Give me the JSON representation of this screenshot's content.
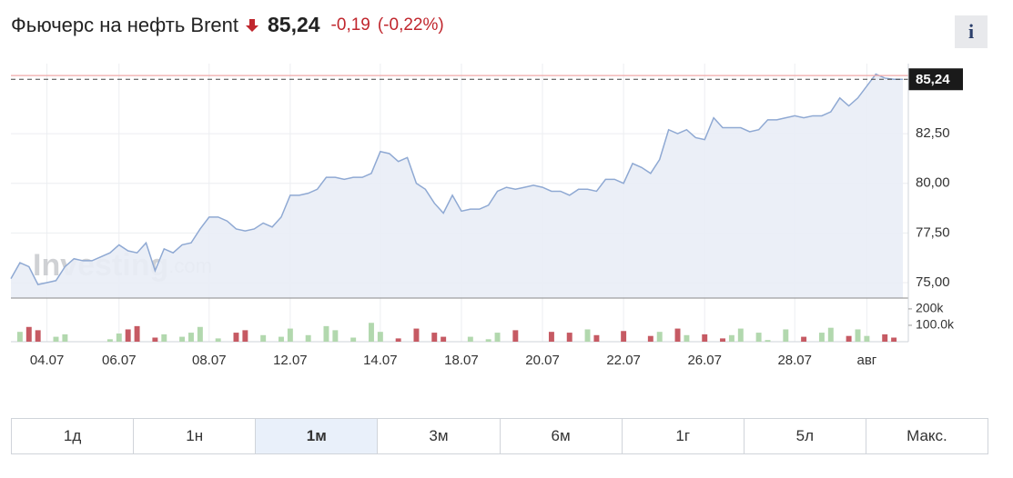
{
  "header": {
    "title": "Фьючерс на нефть Brent",
    "price": "85,24",
    "change": "-0,19",
    "change_pct": "(-0,22%)",
    "info": "i"
  },
  "chart_data": {
    "type": "area",
    "watermark": {
      "brand": "Investing",
      "suffix": ".com"
    },
    "color": "#8fa9d3",
    "fill_color": "#e9edf6",
    "categories": [
      null,
      null,
      null,
      null,
      "04.07",
      null,
      null,
      null,
      null,
      null,
      null,
      null,
      "06.07",
      null,
      null,
      null,
      null,
      null,
      null,
      null,
      null,
      null,
      "08.07",
      null,
      null,
      null,
      null,
      null,
      null,
      null,
      null,
      "12.07",
      null,
      null,
      null,
      null,
      null,
      null,
      null,
      null,
      null,
      "14.07",
      null,
      null,
      null,
      null,
      null,
      null,
      null,
      null,
      "18.07",
      null,
      null,
      null,
      null,
      null,
      null,
      null,
      null,
      "20.07",
      null,
      null,
      null,
      null,
      null,
      null,
      null,
      null,
      "22.07",
      null,
      null,
      null,
      null,
      null,
      null,
      null,
      null,
      "26.07",
      null,
      null,
      null,
      null,
      null,
      null,
      null,
      null,
      null,
      "28.07",
      null,
      null,
      null,
      null,
      null,
      null,
      null,
      "авг",
      null,
      null,
      null,
      null
    ],
    "values": [
      75.2,
      76.0,
      75.8,
      74.9,
      75.0,
      75.1,
      75.8,
      76.2,
      76.1,
      76.1,
      76.3,
      76.5,
      76.9,
      76.6,
      76.5,
      77.0,
      75.6,
      76.7,
      76.5,
      76.9,
      77.0,
      77.7,
      78.3,
      78.3,
      78.1,
      77.7,
      77.6,
      77.7,
      78.0,
      77.8,
      78.3,
      79.4,
      79.4,
      79.5,
      79.7,
      80.3,
      80.3,
      80.2,
      80.3,
      80.3,
      80.5,
      81.6,
      81.5,
      81.1,
      81.3,
      80.0,
      79.7,
      79.0,
      78.5,
      79.4,
      78.6,
      78.7,
      78.7,
      78.9,
      79.6,
      79.8,
      79.7,
      79.8,
      79.9,
      79.8,
      79.6,
      79.6,
      79.4,
      79.7,
      79.7,
      79.6,
      80.2,
      80.2,
      80.0,
      81.0,
      80.8,
      80.5,
      81.2,
      82.7,
      82.5,
      82.7,
      82.3,
      82.2,
      83.3,
      82.8,
      82.8,
      82.8,
      82.6,
      82.7,
      83.2,
      83.2,
      83.3,
      83.4,
      83.3,
      83.4,
      83.4,
      83.6,
      84.3,
      83.9,
      84.3,
      84.9,
      85.5,
      85.3,
      85.24,
      85.24
    ],
    "ylim": [
      74.22,
      86.03
    ],
    "yticks": [
      {
        "value": 75,
        "label": "75,00"
      },
      {
        "value": 77.5,
        "label": "77,50"
      },
      {
        "value": 80,
        "label": "80,00"
      },
      {
        "value": 82.5,
        "label": "82,50"
      }
    ],
    "last": {
      "value": 85.24,
      "label": "85,24"
    },
    "reference_line": 85.43,
    "volume": {
      "up_color": "#b2d8ae",
      "down_color": "#c65a63",
      "values": [
        0,
        60000,
        90000,
        70000,
        0,
        30000,
        45000,
        0,
        0,
        0,
        0,
        15000,
        50000,
        75000,
        95000,
        0,
        25000,
        45000,
        0,
        30000,
        55000,
        90000,
        0,
        20000,
        0,
        55000,
        70000,
        0,
        40000,
        0,
        30000,
        80000,
        0,
        40000,
        0,
        95000,
        70000,
        0,
        25000,
        0,
        115000,
        60000,
        0,
        20000,
        0,
        80000,
        0,
        55000,
        30000,
        0,
        0,
        30000,
        0,
        15000,
        55000,
        0,
        70000,
        0,
        0,
        0,
        60000,
        0,
        55000,
        0,
        75000,
        40000,
        0,
        0,
        65000,
        0,
        0,
        35000,
        60000,
        0,
        80000,
        40000,
        0,
        45000,
        0,
        20000,
        40000,
        80000,
        0,
        55000,
        10000,
        0,
        75000,
        0,
        30000,
        0,
        55000,
        85000,
        0,
        35000,
        75000,
        35000,
        0,
        45000,
        25000,
        0
      ],
      "ylim": [
        0,
        255000
      ],
      "yticks": [
        {
          "value": 100000,
          "label": "100.0k"
        },
        {
          "value": 200000,
          "label": "200k"
        }
      ]
    }
  },
  "buttons": [
    "1д",
    "1н",
    "1м",
    "3м",
    "6м",
    "1г",
    "5л",
    "Макс."
  ],
  "active_button": 2
}
